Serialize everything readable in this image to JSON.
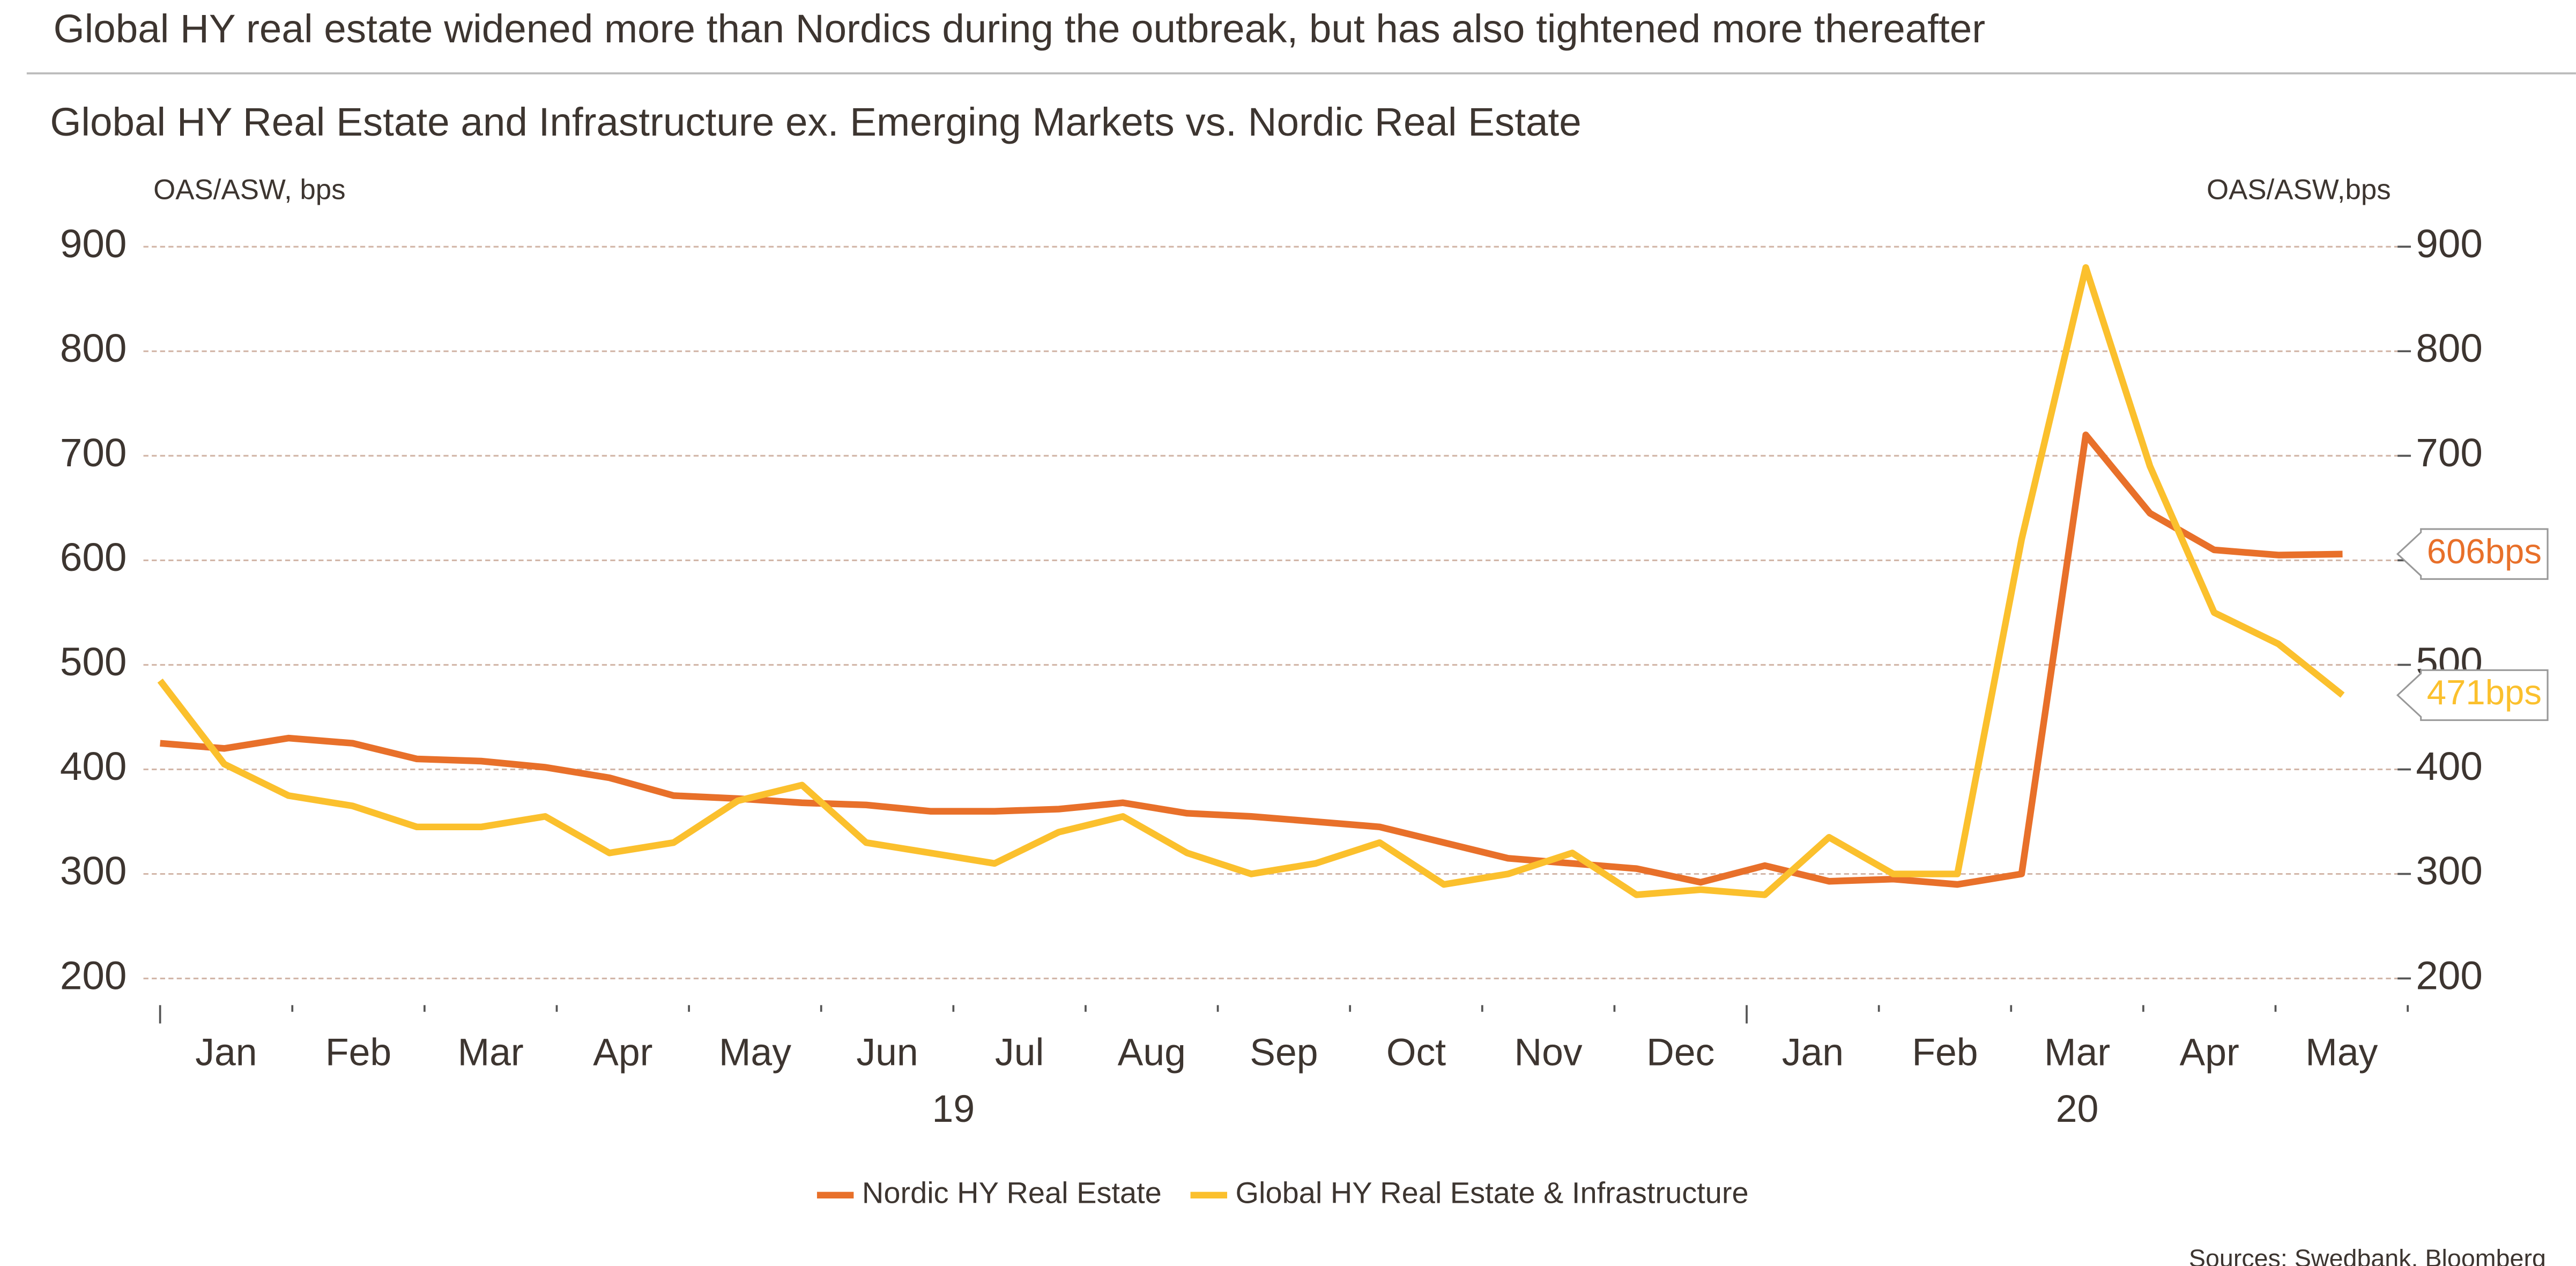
{
  "chart_data": {
    "type": "line",
    "headline": "Global HY real estate widened more than Nordics during the outbreak, but has also tightened more thereafter",
    "title": "Global HY Real Estate and Infrastructure ex. Emerging Markets vs. Nordic Real Estate",
    "y_label": "OAS/ASW, bps",
    "y2_label": "OAS/ASW,bps",
    "source": "Sources: Swedbank, Bloomberg",
    "months": [
      "Jan",
      "Feb",
      "Mar",
      "Apr",
      "May",
      "Jun",
      "Jul",
      "Aug",
      "Sep",
      "Oct",
      "Nov",
      "Dec",
      "Jan",
      "Feb",
      "Mar",
      "Apr",
      "May"
    ],
    "years": [
      "19",
      "20"
    ],
    "ylim": [
      200,
      900
    ],
    "yticks": [
      200,
      300,
      400,
      500,
      600,
      700,
      800,
      900
    ],
    "y2lim": [
      200,
      900
    ],
    "y2ticks": [
      200,
      300,
      400,
      500,
      600,
      700,
      800,
      900
    ],
    "grid": true,
    "series": [
      {
        "name": "Nordic HY Real Estate",
        "color": "#e8702a",
        "end_label": "606bps",
        "values": [
          425,
          420,
          430,
          425,
          410,
          408,
          402,
          392,
          375,
          372,
          368,
          366,
          360,
          360,
          362,
          368,
          358,
          355,
          350,
          345,
          330,
          315,
          310,
          305,
          292,
          308,
          293,
          295,
          290,
          300,
          720,
          645,
          610,
          605,
          606
        ]
      },
      {
        "name": "Global HY Real Estate & Infrastructure",
        "color": "#fbc02d",
        "end_label": "471bps",
        "values": [
          485,
          405,
          375,
          365,
          345,
          345,
          355,
          320,
          330,
          370,
          385,
          330,
          320,
          310,
          340,
          355,
          320,
          300,
          310,
          330,
          290,
          300,
          320,
          280,
          285,
          280,
          335,
          300,
          300,
          620,
          880,
          690,
          550,
          520,
          471
        ]
      }
    ]
  }
}
